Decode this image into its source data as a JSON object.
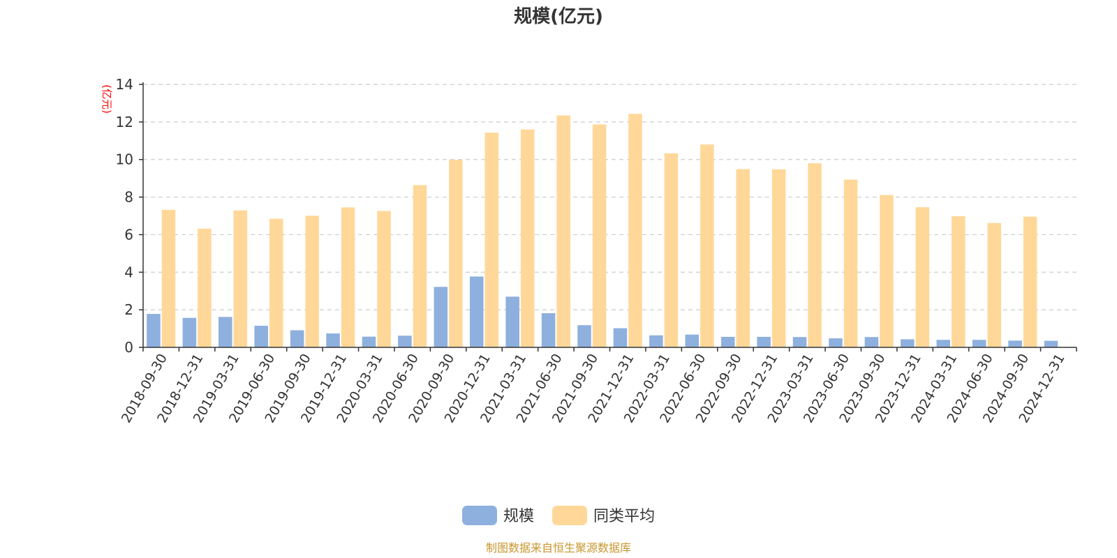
{
  "chart_data": {
    "type": "bar",
    "title": "规模(亿元)",
    "ylabel": "(亿元)",
    "ylim": [
      0,
      14
    ],
    "yticks": [
      0,
      2,
      4,
      6,
      8,
      10,
      12,
      14
    ],
    "grid": true,
    "legend_position": "bottom",
    "categories": [
      "2018-09-30",
      "2018-12-31",
      "2019-03-31",
      "2019-06-30",
      "2019-09-30",
      "2019-12-31",
      "2020-03-31",
      "2020-06-30",
      "2020-09-30",
      "2020-12-31",
      "2021-03-31",
      "2021-06-30",
      "2021-09-30",
      "2021-12-31",
      "2022-03-31",
      "2022-06-30",
      "2022-09-30",
      "2022-12-31",
      "2023-03-31",
      "2023-06-30",
      "2023-09-30",
      "2023-12-31",
      "2024-03-31",
      "2024-06-30",
      "2024-09-30",
      "2024-12-31"
    ],
    "series": [
      {
        "name": "规模",
        "color": "#8eb0de",
        "values": [
          1.78,
          1.57,
          1.62,
          1.15,
          0.91,
          0.74,
          0.57,
          0.62,
          3.22,
          3.77,
          2.7,
          1.82,
          1.18,
          1.02,
          0.64,
          0.68,
          0.56,
          0.56,
          0.55,
          0.48,
          0.55,
          0.43,
          0.4,
          0.4,
          0.36,
          0.35
        ]
      },
      {
        "name": "同类平均",
        "color": "#ffd899",
        "values": [
          7.32,
          6.32,
          7.29,
          6.85,
          7.01,
          7.45,
          7.26,
          8.64,
          9.98,
          11.43,
          11.6,
          12.35,
          11.87,
          12.43,
          10.33,
          10.8,
          9.49,
          9.48,
          9.8,
          8.93,
          8.11,
          7.46,
          6.98,
          6.62,
          6.96,
          null
        ]
      }
    ]
  },
  "footer": {
    "source_text": "制图数据来自恒生聚源数据库"
  }
}
